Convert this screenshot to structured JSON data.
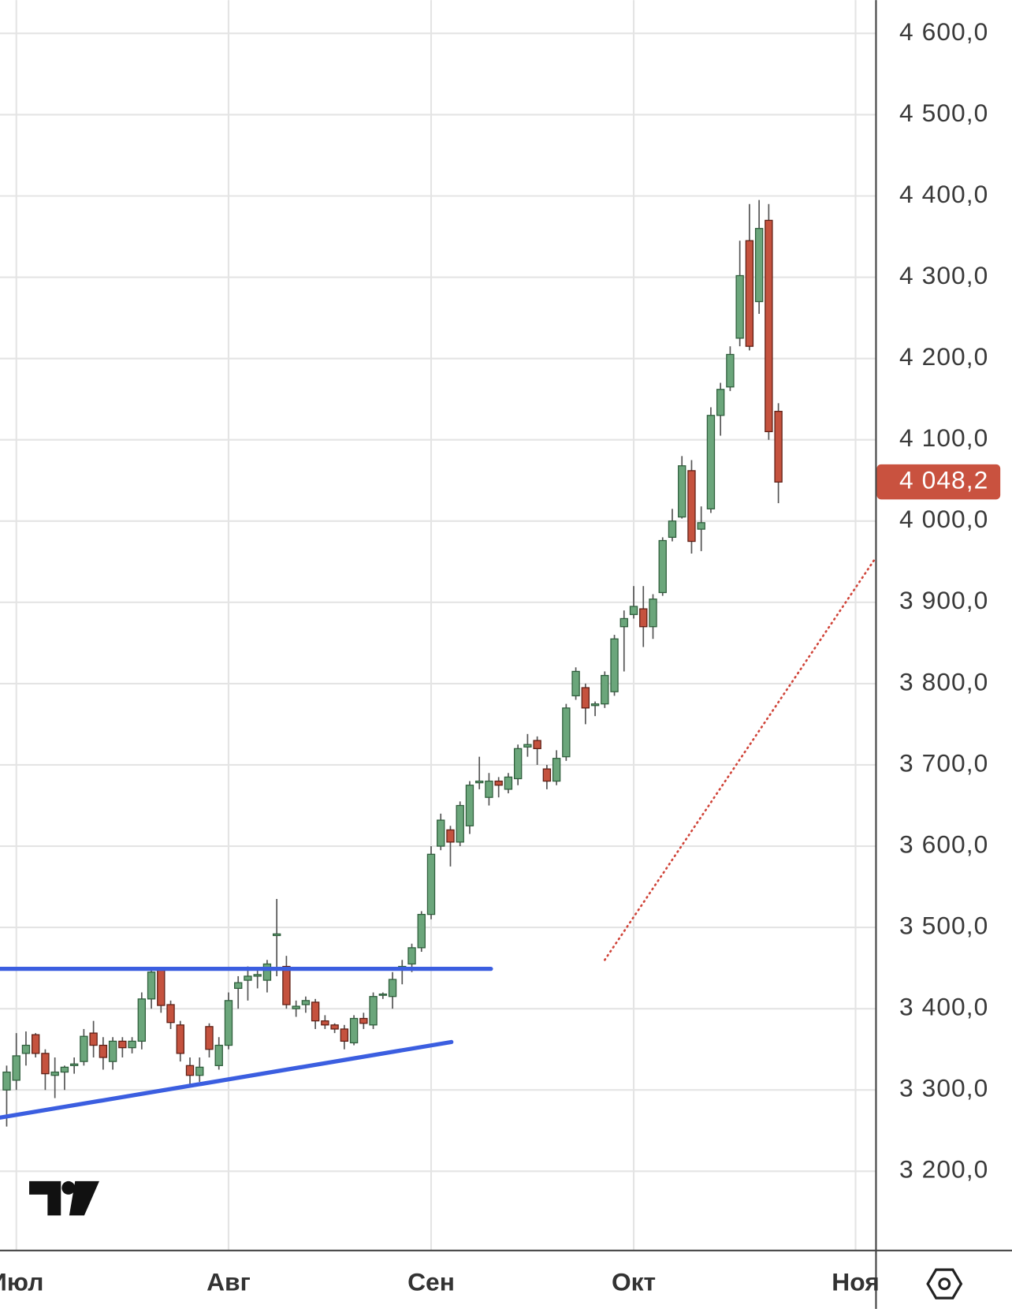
{
  "chart_data": {
    "type": "candlestick",
    "categories": [
      null,
      "Июл",
      null,
      null,
      null,
      null,
      null,
      null,
      null,
      null,
      null,
      null,
      null,
      null,
      null,
      null,
      null,
      null,
      null,
      null,
      null,
      null,
      null,
      "Авг",
      null,
      null,
      null,
      null,
      null,
      null,
      null,
      null,
      null,
      null,
      null,
      null,
      null,
      null,
      null,
      null,
      null,
      null,
      null,
      null,
      "Сен",
      null,
      null,
      null,
      null,
      null,
      null,
      null,
      null,
      null,
      null,
      null,
      null,
      null,
      null,
      null,
      null,
      null,
      null,
      null,
      null,
      "Окт",
      null,
      null,
      null,
      null,
      null,
      null,
      null,
      null,
      null,
      null,
      null,
      null,
      null,
      null,
      null,
      null,
      null,
      null,
      null,
      null,
      null,
      null,
      "Ноя",
      null,
      null
    ],
    "open": [
      3300,
      3312,
      3345,
      3368,
      3345,
      3318,
      3322,
      3330,
      3335,
      3370,
      3355,
      3335,
      3360,
      3352,
      3360,
      3412,
      3448,
      3405,
      3380,
      3330,
      3318,
      3378,
      3330,
      3355,
      3425,
      3435,
      3440,
      3435,
      3490,
      3452,
      3400,
      3405,
      3408,
      3385,
      3380,
      3375,
      3358,
      3388,
      3380,
      3418,
      3415,
      3448,
      3455,
      3475,
      3516,
      3600,
      3620,
      3605,
      3625,
      3678,
      3660,
      3680,
      3670,
      3683,
      3722,
      3730,
      3695,
      3680,
      3710,
      3785,
      3795,
      3773,
      3775,
      3790,
      3870,
      3885,
      3892,
      3870,
      3912,
      3980,
      4005,
      4062,
      3990,
      4015,
      4130,
      4165,
      4225,
      4345,
      4270,
      4370,
      4135,
      null,
      null,
      null,
      null,
      null,
      null,
      null,
      null,
      null,
      null
    ],
    "high": [
      3330,
      3370,
      3372,
      3370,
      3350,
      3340,
      3330,
      3340,
      3375,
      3385,
      3365,
      3365,
      3365,
      3365,
      3420,
      3450,
      3450,
      3410,
      3385,
      3340,
      3340,
      3382,
      3365,
      3420,
      3440,
      3452,
      3448,
      3460,
      3535,
      3465,
      3410,
      3415,
      3412,
      3392,
      3382,
      3380,
      3392,
      3395,
      3420,
      3420,
      3445,
      3460,
      3480,
      3520,
      3600,
      3640,
      3625,
      3655,
      3680,
      3710,
      3690,
      3685,
      3690,
      3725,
      3738,
      3735,
      3700,
      3718,
      3775,
      3820,
      3800,
      3778,
      3815,
      3860,
      3890,
      3920,
      3920,
      3910,
      3980,
      4015,
      4080,
      4075,
      4018,
      4140,
      4170,
      4215,
      4345,
      4390,
      4395,
      4390,
      4145,
      null,
      null,
      null,
      null,
      null,
      null,
      null,
      null,
      null,
      null
    ],
    "low": [
      3255,
      3300,
      3330,
      3340,
      3300,
      3290,
      3300,
      3320,
      3330,
      3340,
      3325,
      3325,
      3340,
      3345,
      3350,
      3400,
      3395,
      3375,
      3335,
      3305,
      3310,
      3340,
      3325,
      3350,
      3400,
      3410,
      3425,
      3420,
      3440,
      3400,
      3390,
      3395,
      3375,
      3375,
      3370,
      3350,
      3355,
      3375,
      3375,
      3412,
      3400,
      3430,
      3445,
      3470,
      3510,
      3595,
      3575,
      3600,
      3615,
      3670,
      3650,
      3660,
      3665,
      3675,
      3710,
      3700,
      3670,
      3675,
      3705,
      3780,
      3750,
      3760,
      3770,
      3785,
      3815,
      3880,
      3845,
      3855,
      3908,
      3975,
      4003,
      3960,
      3963,
      4010,
      4105,
      4160,
      4215,
      4210,
      4255,
      4100,
      4022,
      null,
      null,
      null,
      null,
      null,
      null,
      null,
      null,
      null,
      null
    ],
    "close": [
      3322,
      3342,
      3355,
      3345,
      3320,
      3322,
      3328,
      3332,
      3366,
      3355,
      3340,
      3360,
      3352,
      3360,
      3412,
      3445,
      3404,
      3383,
      3345,
      3318,
      3328,
      3350,
      3355,
      3410,
      3432,
      3440,
      3442,
      3455,
      3492,
      3405,
      3403,
      3410,
      3385,
      3380,
      3375,
      3360,
      3388,
      3382,
      3415,
      3418,
      3436,
      3452,
      3475,
      3516,
      3590,
      3632,
      3605,
      3650,
      3675,
      3680,
      3680,
      3675,
      3685,
      3720,
      3725,
      3720,
      3680,
      3708,
      3770,
      3815,
      3770,
      3775,
      3810,
      3855,
      3880,
      3895,
      3870,
      3904,
      3976,
      4000,
      4068,
      3975,
      3998,
      4130,
      4162,
      4205,
      4302,
      4215,
      4360,
      4110,
      4048,
      null,
      null,
      null,
      null,
      null,
      null,
      null,
      null,
      null,
      null
    ],
    "up_color": "#6ba67b",
    "down_color": "#c5523e",
    "ylim": [
      3102.5,
      4641
    ],
    "yticks": [
      {
        "value": 3200,
        "label": "3 200,0"
      },
      {
        "value": 3300,
        "label": "3 300,0"
      },
      {
        "value": 3400,
        "label": "3 400,0"
      },
      {
        "value": 3500,
        "label": "3 500,0"
      },
      {
        "value": 3600,
        "label": "3 600,0"
      },
      {
        "value": 3700,
        "label": "3 700,0"
      },
      {
        "value": 3800,
        "label": "3 800,0"
      },
      {
        "value": 3900,
        "label": "3 900,0"
      },
      {
        "value": 4000,
        "label": "4 000,0"
      },
      {
        "value": 4100,
        "label": "4 100,0"
      },
      {
        "value": 4200,
        "label": "4 200,0"
      },
      {
        "value": 4300,
        "label": "4 300,0"
      },
      {
        "value": 4400,
        "label": "4 400,0"
      },
      {
        "value": 4500,
        "label": "4 500,0"
      },
      {
        "value": 4600,
        "label": "4 600,0"
      }
    ],
    "grid": true,
    "last_price": {
      "value": 4048.2,
      "label": "4 048,2",
      "color": "#c9523f"
    },
    "trendlines": [
      {
        "color": "#3b5ee0",
        "style": "solid",
        "points": [
          [
            -0.7,
            3449
          ],
          [
            50.2,
            3449
          ]
        ]
      },
      {
        "color": "#3b5ee0",
        "style": "solid",
        "points": [
          [
            -0.7,
            3266
          ],
          [
            46.1,
            3359
          ]
        ]
      },
      {
        "color": "#d0453a",
        "style": "dotted",
        "points": [
          [
            62,
            3460
          ],
          [
            90.1,
            3955
          ]
        ]
      }
    ]
  }
}
